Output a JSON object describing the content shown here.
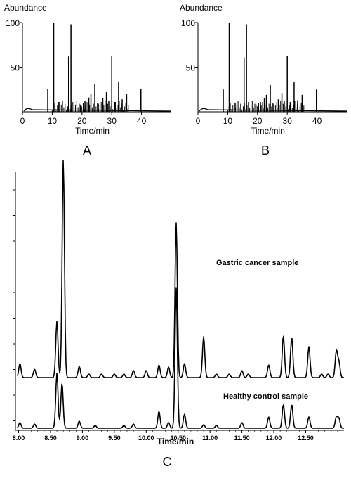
{
  "chart_data": [
    {
      "panel": "A",
      "type": "line",
      "ylabel": "Abundance",
      "xlabel": "Time/min",
      "xlim": [
        0,
        50
      ],
      "ylim": [
        0,
        100
      ],
      "xticks": [
        0,
        10,
        20,
        30,
        40
      ],
      "yticks": [
        50,
        100
      ],
      "peaks": [
        {
          "x": 8.5,
          "y": 26
        },
        {
          "x": 10.5,
          "y": 100
        },
        {
          "x": 12.5,
          "y": 11
        },
        {
          "x": 15.5,
          "y": 62
        },
        {
          "x": 16.3,
          "y": 98
        },
        {
          "x": 19.5,
          "y": 8
        },
        {
          "x": 21.0,
          "y": 12
        },
        {
          "x": 22.3,
          "y": 16
        },
        {
          "x": 23.0,
          "y": 20
        },
        {
          "x": 24.3,
          "y": 31
        },
        {
          "x": 25.5,
          "y": 9
        },
        {
          "x": 27.0,
          "y": 15
        },
        {
          "x": 28.2,
          "y": 22
        },
        {
          "x": 29.0,
          "y": 12
        },
        {
          "x": 30.0,
          "y": 63
        },
        {
          "x": 31.0,
          "y": 11
        },
        {
          "x": 32.3,
          "y": 34
        },
        {
          "x": 33.5,
          "y": 14
        },
        {
          "x": 35.0,
          "y": 20
        },
        {
          "x": 39.8,
          "y": 26
        }
      ]
    },
    {
      "panel": "B",
      "type": "line",
      "ylabel": "Abundance",
      "xlabel": "Time/min",
      "xlim": [
        0,
        50
      ],
      "ylim": [
        0,
        100
      ],
      "xticks": [
        0,
        10,
        20,
        30,
        40
      ],
      "yticks": [
        50,
        100
      ],
      "peaks": [
        {
          "x": 8.5,
          "y": 25
        },
        {
          "x": 10.5,
          "y": 100
        },
        {
          "x": 12.5,
          "y": 10
        },
        {
          "x": 15.5,
          "y": 61
        },
        {
          "x": 16.3,
          "y": 98
        },
        {
          "x": 19.5,
          "y": 8
        },
        {
          "x": 21.0,
          "y": 11
        },
        {
          "x": 22.3,
          "y": 15
        },
        {
          "x": 23.0,
          "y": 19
        },
        {
          "x": 24.3,
          "y": 30
        },
        {
          "x": 25.5,
          "y": 9
        },
        {
          "x": 27.0,
          "y": 14
        },
        {
          "x": 28.2,
          "y": 21
        },
        {
          "x": 29.0,
          "y": 12
        },
        {
          "x": 30.0,
          "y": 63
        },
        {
          "x": 31.0,
          "y": 11
        },
        {
          "x": 32.3,
          "y": 33
        },
        {
          "x": 33.5,
          "y": 13
        },
        {
          "x": 35.0,
          "y": 19
        },
        {
          "x": 39.8,
          "y": 25
        }
      ]
    },
    {
      "panel": "C",
      "type": "line",
      "xlabel": "Time/min",
      "xlim": [
        7.95,
        13.1
      ],
      "xticks": [
        "8.00",
        "8.50",
        "9.00",
        "9.50",
        "10.00",
        "10.50",
        "11.00",
        "11.50",
        "12.00",
        "12.50"
      ],
      "series": [
        {
          "name": "Gastric cancer sample",
          "peaks": [
            {
              "x": 8.02,
              "y": 20
            },
            {
              "x": 8.25,
              "y": 12
            },
            {
              "x": 8.6,
              "y": 80
            },
            {
              "x": 8.7,
              "y": 310
            },
            {
              "x": 8.95,
              "y": 16
            },
            {
              "x": 9.1,
              "y": 5
            },
            {
              "x": 9.3,
              "y": 5
            },
            {
              "x": 9.5,
              "y": 5
            },
            {
              "x": 9.65,
              "y": 5
            },
            {
              "x": 9.8,
              "y": 10
            },
            {
              "x": 10.0,
              "y": 10
            },
            {
              "x": 10.2,
              "y": 18
            },
            {
              "x": 10.35,
              "y": 15
            },
            {
              "x": 10.47,
              "y": 220
            },
            {
              "x": 10.6,
              "y": 20
            },
            {
              "x": 10.9,
              "y": 58
            },
            {
              "x": 11.1,
              "y": 5
            },
            {
              "x": 11.3,
              "y": 5
            },
            {
              "x": 11.5,
              "y": 10
            },
            {
              "x": 11.6,
              "y": 5
            },
            {
              "x": 11.92,
              "y": 18
            },
            {
              "x": 12.15,
              "y": 60
            },
            {
              "x": 12.28,
              "y": 58
            },
            {
              "x": 12.55,
              "y": 44
            },
            {
              "x": 12.75,
              "y": 5
            },
            {
              "x": 12.85,
              "y": 5
            },
            {
              "x": 12.98,
              "y": 38
            },
            {
              "x": 13.02,
              "y": 22
            }
          ]
        },
        {
          "name": "Healthy control sample",
          "peaks": [
            {
              "x": 8.02,
              "y": 8
            },
            {
              "x": 8.25,
              "y": 6
            },
            {
              "x": 8.6,
              "y": 78
            },
            {
              "x": 8.68,
              "y": 64
            },
            {
              "x": 8.95,
              "y": 10
            },
            {
              "x": 9.2,
              "y": 4
            },
            {
              "x": 9.65,
              "y": 4
            },
            {
              "x": 9.8,
              "y": 6
            },
            {
              "x": 10.2,
              "y": 24
            },
            {
              "x": 10.35,
              "y": 8
            },
            {
              "x": 10.47,
              "y": 200
            },
            {
              "x": 10.6,
              "y": 20
            },
            {
              "x": 10.9,
              "y": 5
            },
            {
              "x": 11.1,
              "y": 4
            },
            {
              "x": 11.5,
              "y": 8
            },
            {
              "x": 11.92,
              "y": 16
            },
            {
              "x": 12.15,
              "y": 34
            },
            {
              "x": 12.28,
              "y": 34
            },
            {
              "x": 12.55,
              "y": 16
            },
            {
              "x": 12.98,
              "y": 16
            },
            {
              "x": 13.02,
              "y": 14
            }
          ]
        }
      ]
    }
  ]
}
